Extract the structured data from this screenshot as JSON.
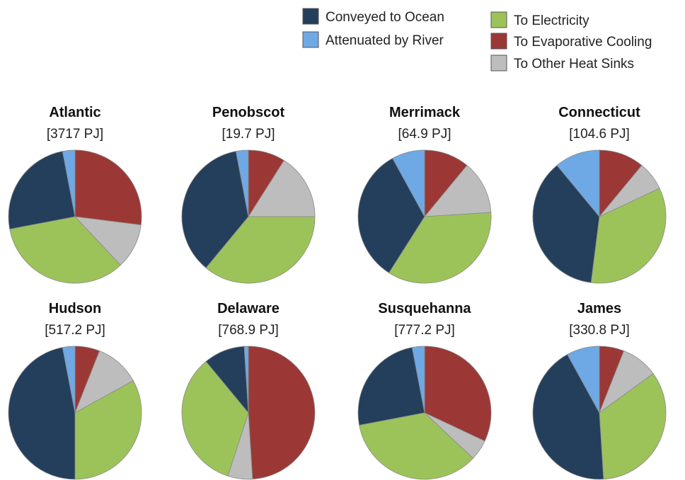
{
  "chart_data": {
    "type": "pie",
    "legend": {
      "placement": "top-right",
      "items": [
        {
          "key": "ocean",
          "label": "Conveyed to Ocean",
          "color": "#243f5c"
        },
        {
          "key": "river",
          "label": "Attenuated by River",
          "color": "#6ea9e6"
        },
        {
          "key": "electricity",
          "label": "To Electricity",
          "color": "#9cc35a"
        },
        {
          "key": "evaporative",
          "label": "To Evaporative Cooling",
          "color": "#9b3836"
        },
        {
          "key": "other",
          "label": "To Other Heat Sinks",
          "color": "#bdbdbd"
        }
      ]
    },
    "pies": [
      {
        "title": "Atlantic",
        "total": "[3717 PJ]",
        "slices": {
          "evaporative": 0.27,
          "other": 0.11,
          "electricity": 0.34,
          "ocean": 0.25,
          "river": 0.03
        }
      },
      {
        "title": "Penobscot",
        "total": "[19.7 PJ]",
        "slices": {
          "evaporative": 0.09,
          "other": 0.16,
          "electricity": 0.36,
          "ocean": 0.36,
          "river": 0.03
        }
      },
      {
        "title": "Merrimack",
        "total": "[64.9 PJ]",
        "slices": {
          "evaporative": 0.11,
          "other": 0.13,
          "electricity": 0.35,
          "ocean": 0.33,
          "river": 0.08
        }
      },
      {
        "title": "Connecticut",
        "total": "[104.6 PJ]",
        "slices": {
          "evaporative": 0.11,
          "other": 0.07,
          "electricity": 0.34,
          "ocean": 0.37,
          "river": 0.11
        }
      },
      {
        "title": "Hudson",
        "total": "[517.2 PJ]",
        "slices": {
          "evaporative": 0.06,
          "other": 0.11,
          "electricity": 0.33,
          "ocean": 0.47,
          "river": 0.03
        }
      },
      {
        "title": "Delaware",
        "total": "[768.9 PJ]",
        "slices": {
          "evaporative": 0.49,
          "other": 0.06,
          "electricity": 0.34,
          "ocean": 0.1,
          "river": 0.01
        }
      },
      {
        "title": "Susquehanna",
        "total": "[777.2 PJ]",
        "slices": {
          "evaporative": 0.32,
          "other": 0.05,
          "electricity": 0.35,
          "ocean": 0.25,
          "river": 0.03
        }
      },
      {
        "title": "James",
        "total": "[330.8 PJ]",
        "slices": {
          "evaporative": 0.06,
          "other": 0.09,
          "electricity": 0.34,
          "ocean": 0.43,
          "river": 0.08
        }
      }
    ],
    "slice_order": [
      "evaporative",
      "other",
      "electricity",
      "ocean",
      "river"
    ],
    "grid": false
  }
}
